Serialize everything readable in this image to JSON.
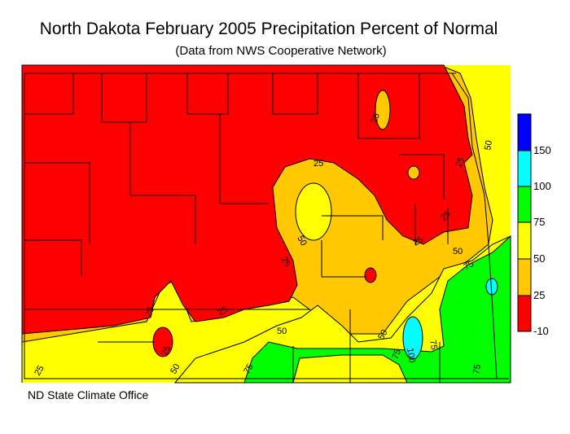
{
  "title": "North Dakota February 2005 Precipitation Percent of Normal",
  "subtitle": "(Data from NWS Cooperative Network)",
  "credit": "ND State Climate Office",
  "colors": {
    "blue": "#0000ff",
    "cyan": "#00ffff",
    "green": "#00ff00",
    "yellow": "#ffff00",
    "orange": "#ffc800",
    "red": "#ff0000"
  },
  "legend": {
    "bins": [
      {
        "label": "150",
        "color": "#0000ff"
      },
      {
        "label": "100",
        "color": "#00ffff"
      },
      {
        "label": "75",
        "color": "#00ff00"
      },
      {
        "label": "50",
        "color": "#ffff00"
      },
      {
        "label": "25",
        "color": "#ffc800"
      },
      {
        "label": "-10",
        "color": "#ff0000"
      }
    ]
  },
  "contour_labels": [
    "25",
    "25",
    "25",
    "25",
    "25",
    "25",
    "25",
    "25",
    "25",
    "50",
    "50",
    "50",
    "50",
    "50",
    "50",
    "75",
    "75",
    "75",
    "75",
    "100"
  ]
}
